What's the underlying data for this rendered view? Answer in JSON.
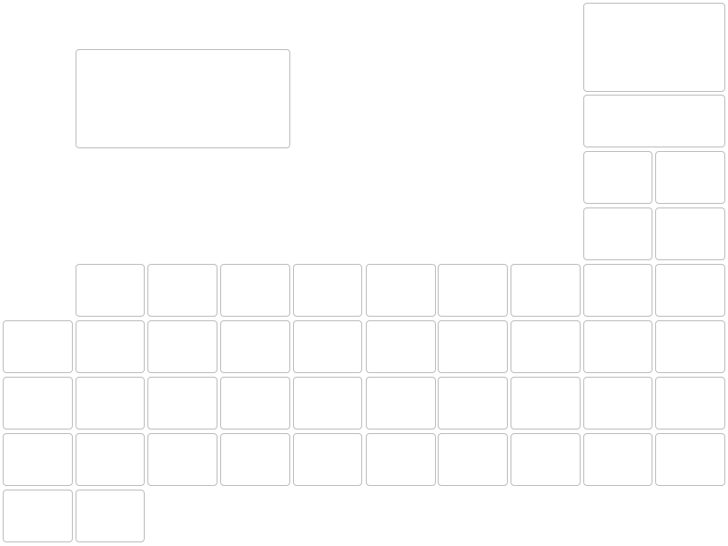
{
  "board": {
    "tile_border_color": "#bdbdbd",
    "tile_fill_color": "#ffffff",
    "background_color": "#ffffff"
  }
}
